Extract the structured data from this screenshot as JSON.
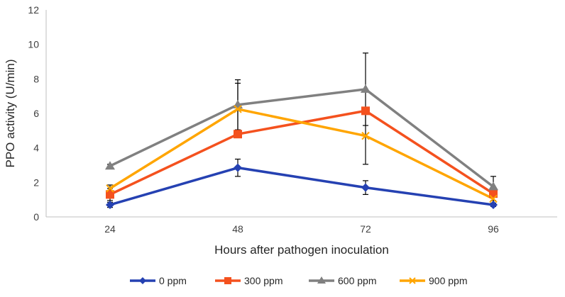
{
  "chart_data": {
    "type": "line",
    "title": "",
    "xlabel": "Hours after pathogen inoculation",
    "ylabel": "PPO activity (U/min)",
    "categories": [
      "24",
      "48",
      "72",
      "96"
    ],
    "ylim": [
      0,
      12
    ],
    "yticks": [
      "0",
      "2",
      "4",
      "6",
      "8",
      "10",
      "12"
    ],
    "grid": false,
    "legend_position": "bottom",
    "series": [
      {
        "name": "0 ppm",
        "color": "#2541B2",
        "marker": "diamond",
        "values": [
          0.7,
          2.85,
          1.7,
          0.7
        ],
        "errors": [
          0.15,
          0.5,
          0.4,
          0.1
        ]
      },
      {
        "name": "300 ppm",
        "color": "#F4511E",
        "marker": "square",
        "values": [
          1.3,
          4.8,
          6.15,
          1.35
        ],
        "errors": [
          0.35,
          0.0,
          0.0,
          0.2
        ]
      },
      {
        "name": "600 ppm",
        "color": "#808080",
        "marker": "triangle",
        "values": [
          2.95,
          6.5,
          7.4,
          1.75
        ],
        "errors": [
          0.1,
          1.45,
          2.1,
          0.6
        ]
      },
      {
        "name": "900 ppm",
        "color": "#FFA500",
        "marker": "x",
        "values": [
          1.65,
          6.25,
          4.7,
          1.05
        ],
        "errors": [
          0.2,
          1.5,
          1.65,
          0.1
        ]
      }
    ]
  }
}
